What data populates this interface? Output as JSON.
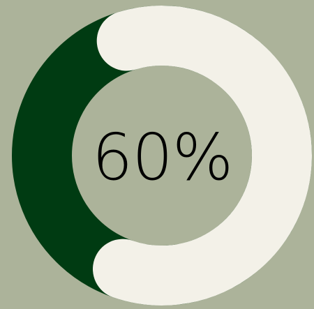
{
  "progress": {
    "value": 0.6,
    "label": "60%"
  },
  "colors": {
    "background": "#acb39a",
    "track": "#003b12",
    "fill": "#f3f1e8",
    "text": "#000000"
  }
}
